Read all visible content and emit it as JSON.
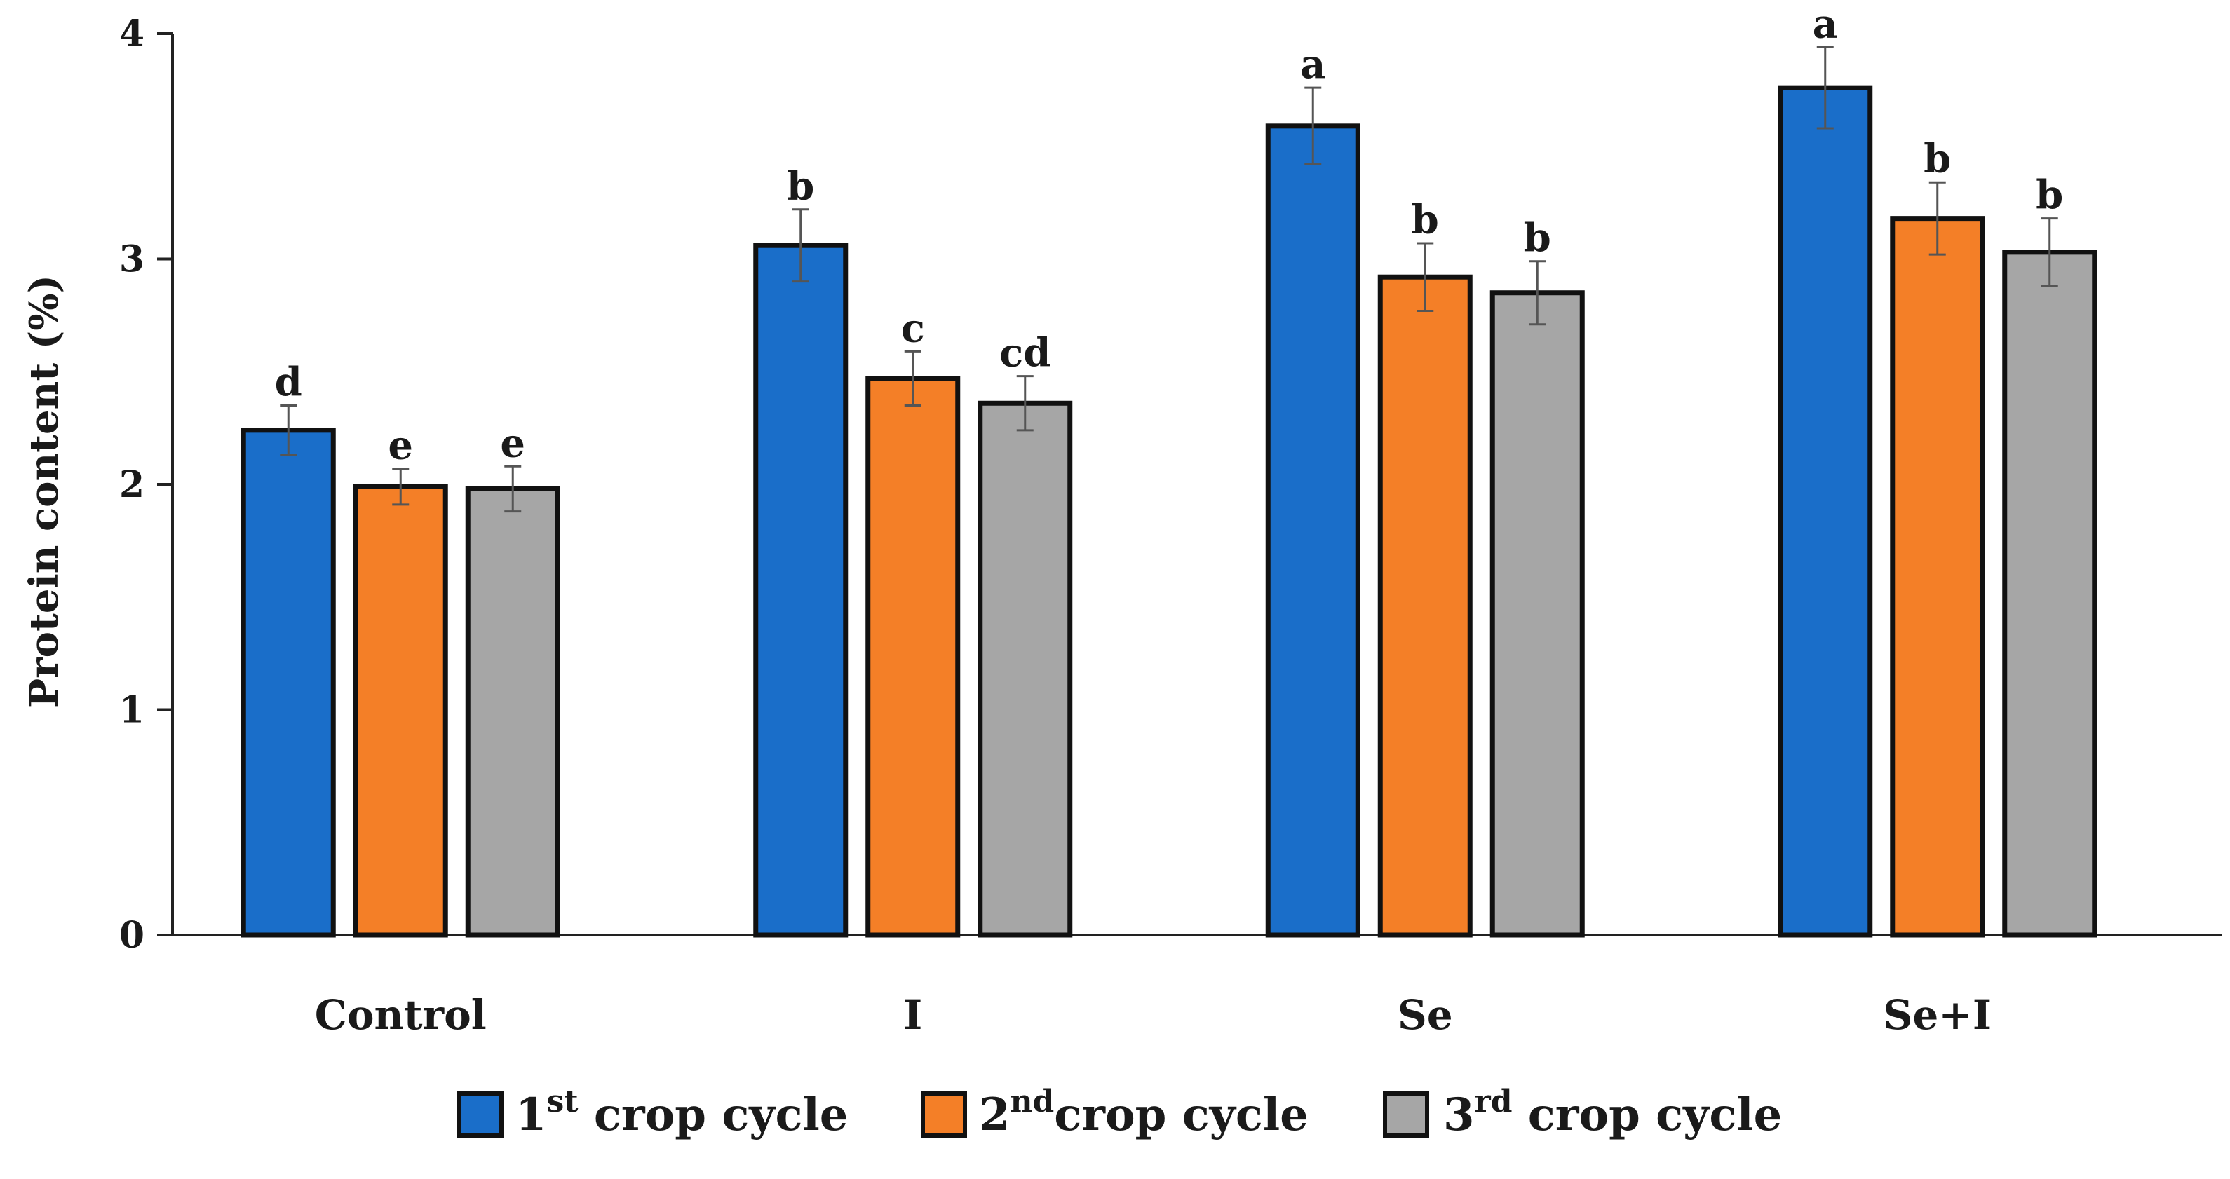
{
  "chart_data": {
    "type": "bar",
    "title": "",
    "xlabel": "",
    "ylabel": "Protein content (%)",
    "ylim": [
      0,
      4
    ],
    "yticks": [
      0,
      1,
      2,
      3,
      4
    ],
    "categories": [
      "Control",
      "I",
      "Se",
      "Se+I"
    ],
    "series": [
      {
        "name": "1st crop cycle",
        "base": "1",
        "sup": "st",
        "rest": " crop cycle",
        "color": "#1a6ec9",
        "values": [
          2.24,
          3.06,
          3.59,
          3.76
        ],
        "errors": [
          0.11,
          0.16,
          0.17,
          0.18
        ],
        "letters": [
          "d",
          "b",
          "a",
          "a"
        ]
      },
      {
        "name": "2nd crop cycle",
        "base": "2",
        "sup": "nd",
        "rest": "crop cycle",
        "color": "#f47f27",
        "values": [
          1.99,
          2.47,
          2.92,
          3.18
        ],
        "errors": [
          0.08,
          0.12,
          0.15,
          0.16
        ],
        "letters": [
          "e",
          "c",
          "b",
          "b"
        ]
      },
      {
        "name": "3rd crop cycle",
        "base": "3",
        "sup": "rd",
        "rest": " crop cycle",
        "color": "#a6a6a6",
        "values": [
          1.98,
          2.36,
          2.85,
          3.03
        ],
        "errors": [
          0.1,
          0.12,
          0.14,
          0.15
        ],
        "letters": [
          "e",
          "cd",
          "b",
          "b"
        ]
      }
    ],
    "legend_position": "bottom"
  }
}
